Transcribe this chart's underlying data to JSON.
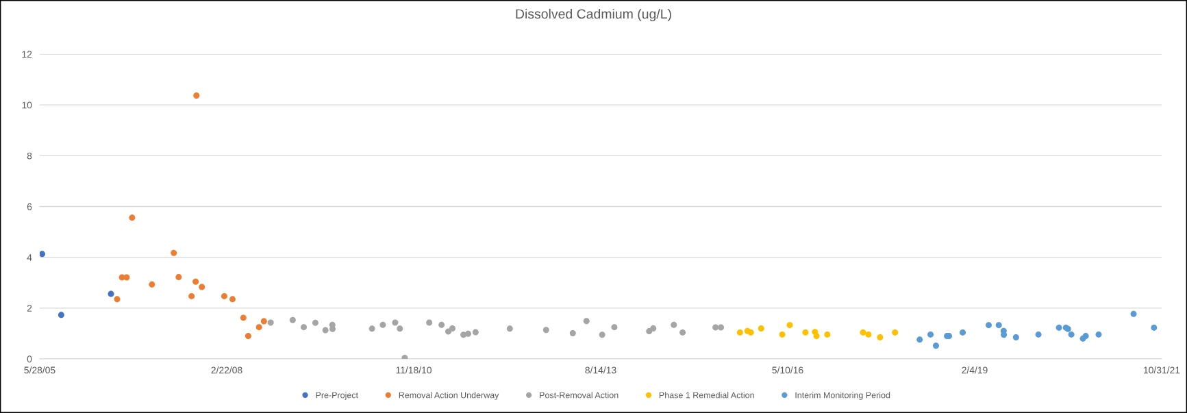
{
  "chart_data": {
    "type": "scatter",
    "title": "Dissolved Cadmium (ug/L)",
    "xlim": [
      "2005-05-28",
      "2021-10-31"
    ],
    "xticks": [
      {
        "value": "2005-05-28",
        "label": "5/28/05"
      },
      {
        "value": "2008-02-22",
        "label": "2/22/08"
      },
      {
        "value": "2010-11-18",
        "label": "11/18/10"
      },
      {
        "value": "2013-08-14",
        "label": "8/14/13"
      },
      {
        "value": "2016-05-10",
        "label": "5/10/16"
      },
      {
        "value": "2019-02-04",
        "label": "2/4/19"
      },
      {
        "value": "2021-10-31",
        "label": "10/31/21"
      }
    ],
    "ylim": [
      0,
      12
    ],
    "yticks": [
      0,
      2,
      4,
      6,
      8,
      10,
      12
    ],
    "grid": "y",
    "legend": "bottom",
    "marker": "circle",
    "series": [
      {
        "name": "Pre-Project",
        "color": "#4472c4",
        "x": [
          "2005-06-10",
          "2005-09-20",
          "2006-06-13"
        ],
        "values": [
          4.13,
          1.73,
          2.56
        ]
      },
      {
        "name": "Removal Action Underway",
        "color": "#ed7d31",
        "x": [
          "2006-07-16",
          "2006-08-11",
          "2006-09-05",
          "2006-10-04",
          "2007-01-18",
          "2007-05-15",
          "2007-06-10",
          "2007-08-18",
          "2007-09-09",
          "2007-09-13",
          "2007-10-12",
          "2008-02-09",
          "2008-03-24",
          "2008-05-21",
          "2008-06-16",
          "2008-08-13",
          "2008-09-08"
        ],
        "values": [
          2.35,
          3.21,
          3.21,
          5.56,
          2.93,
          4.17,
          3.22,
          2.47,
          3.04,
          10.37,
          2.83,
          2.47,
          2.35,
          1.62,
          0.9,
          1.25,
          1.48
        ]
      },
      {
        "name": "Post-Removal Action",
        "color": "#a5a5a5",
        "x": [
          "2008-10-14",
          "2009-02-09",
          "2009-04-09",
          "2009-06-10",
          "2009-08-03",
          "2009-09-09",
          "2009-09-10",
          "2010-04-09",
          "2010-06-06",
          "2010-08-11",
          "2010-09-05",
          "2010-10-01",
          "2011-02-09",
          "2011-04-16",
          "2011-05-22",
          "2011-06-13",
          "2011-08-11",
          "2011-09-05",
          "2011-10-15",
          "2012-04-15",
          "2012-10-26",
          "2013-03-18",
          "2013-05-30",
          "2013-08-22",
          "2013-10-26",
          "2014-04-30",
          "2014-05-22",
          "2014-09-09",
          "2014-10-26",
          "2015-04-20",
          "2015-05-19"
        ],
        "values": [
          1.43,
          1.53,
          1.25,
          1.42,
          1.13,
          1.34,
          1.18,
          1.19,
          1.34,
          1.43,
          1.19,
          0.04,
          1.43,
          1.34,
          1.08,
          1.2,
          0.95,
          0.99,
          1.05,
          1.19,
          1.14,
          1.01,
          1.49,
          0.95,
          1.25,
          1.09,
          1.2,
          1.34,
          1.04,
          1.24,
          1.24
        ]
      },
      {
        "name": "Phase 1 Remedial Action",
        "color": "#ffc000",
        "x": [
          "2015-08-29",
          "2015-10-08",
          "2015-10-26",
          "2015-12-20",
          "2016-04-11",
          "2016-05-21",
          "2016-08-13",
          "2016-10-03",
          "2016-10-11",
          "2016-12-08",
          "2017-06-17",
          "2017-07-16",
          "2017-09-16",
          "2017-12-05"
        ],
        "values": [
          1.04,
          1.1,
          1.04,
          1.2,
          0.96,
          1.33,
          1.04,
          1.06,
          0.9,
          0.96,
          1.04,
          0.96,
          0.85,
          1.04
        ]
      },
      {
        "name": "Interim Monitoring Period",
        "color": "#5b9bd5",
        "x": [
          "2018-04-16",
          "2018-06-13",
          "2018-07-12",
          "2018-09-09",
          "2018-09-20",
          "2018-12-02",
          "2019-04-20",
          "2019-06-13",
          "2019-07-09",
          "2019-07-10",
          "2019-09-13",
          "2020-01-11",
          "2020-04-30",
          "2020-06-06",
          "2020-06-17",
          "2020-07-05",
          "2020-09-05",
          "2020-09-20",
          "2020-11-28",
          "2021-06-03",
          "2021-09-20"
        ],
        "values": [
          0.76,
          0.96,
          0.52,
          0.9,
          0.9,
          1.04,
          1.33,
          1.33,
          1.1,
          0.95,
          0.85,
          0.96,
          1.23,
          1.23,
          1.18,
          0.96,
          0.8,
          0.9,
          0.96,
          1.77,
          1.23
        ]
      }
    ]
  }
}
